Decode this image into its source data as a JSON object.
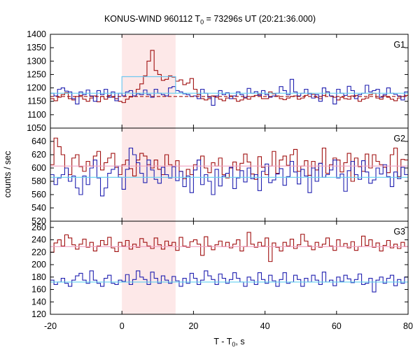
{
  "title": {
    "prefix": "KONUS-WIND 960112 T",
    "sub": "0",
    "suffix": " = 73296s UT (20:21:36.000)"
  },
  "chart_data": {
    "type": "line",
    "shading": {
      "x_range": [
        0,
        15
      ],
      "color": "#fde8e8"
    },
    "x_axis": {
      "label_main": "T - T",
      "label_sub": "0",
      "label_tail": ", s",
      "range": [
        -20,
        80
      ],
      "ticks": [
        -20,
        0,
        20,
        40,
        60,
        80
      ]
    },
    "ylabel": "counts / sec",
    "colors": {
      "red": "#a01010",
      "blue": "#2020b0",
      "pink": "#f0a0c0",
      "cyan": "#60d0f0"
    },
    "panels": [
      {
        "label": "G1",
        "ylim": [
          1050,
          1400
        ],
        "yticks": [
          1050,
          1100,
          1150,
          1200,
          1250,
          1300,
          1350,
          1400
        ],
        "fit_lines": [
          {
            "color": "red",
            "dashed": true,
            "value": 1168
          },
          {
            "color": "cyan",
            "dashed": false,
            "value": 1180
          }
        ],
        "background_blue": {
          "x_from": 0,
          "x_to": 15,
          "value": 1242
        },
        "series": [
          {
            "name": "red",
            "color": "red",
            "values": [
              1160,
              1152,
              1165,
              1175,
              1182,
              1160,
              1155,
              1168,
              1172,
              1158,
              1150,
              1162,
              1170,
              1148,
              1168,
              1158,
              1172,
              1165,
              1160,
              1150,
              1145,
              1158,
              1166,
              1170,
              1195,
              1215,
              1245,
              1300,
              1340,
              1265,
              1250,
              1228,
              1232,
              1245,
              1240,
              1225,
              1230,
              1212,
              1218,
              1235,
              1195,
              1175,
              1160,
              1155,
              1160,
              1170,
              1165,
              1158,
              1152,
              1162,
              1170,
              1160,
              1150,
              1155,
              1162,
              1158,
              1168,
              1172,
              1176,
              1160,
              1160,
              1185,
              1178,
              1170,
              1160,
              1156,
              1162,
              1168,
              1170,
              1158,
              1162,
              1172,
              1180,
              1176,
              1165,
              1160,
              1172,
              1185,
              1170,
              1165,
              1155,
              1165,
              1160,
              1158,
              1170,
              1172,
              1150,
              1158,
              1162,
              1175,
              1180,
              1162,
              1158,
              1170,
              1165,
              1158,
              1152,
              1162,
              1168,
              1172
            ]
          },
          {
            "name": "blue",
            "color": "blue",
            "values": [
              1180,
              1170,
              1195,
              1200,
              1188,
              1185,
              1160,
              1140,
              1185,
              1175,
              1192,
              1170,
              1150,
              1190,
              1175,
              1195,
              1165,
              1185,
              1152,
              1180,
              1170,
              1185,
              1190,
              1170,
              1178,
              1175,
              1192,
              1175,
              1165,
              1195,
              1180,
              1175,
              1170,
              1200,
              1205,
              1190,
              1185,
              1178,
              1175,
              1168,
              1170,
              1160,
              1195,
              1180,
              1165,
              1135,
              1170,
              1190,
              1175,
              1182,
              1160,
              1170,
              1185,
              1175,
              1165,
              1198,
              1180,
              1186,
              1172,
              1190,
              1175,
              1165,
              1170,
              1180,
              1205,
              1190,
              1175,
              1232,
              1185,
              1170,
              1180,
              1195,
              1178,
              1162,
              1175,
              1150,
              1200,
              1185,
              1170,
              1140,
              1195,
              1180,
              1172,
              1206,
              1190,
              1160,
              1175,
              1180,
              1210,
              1185,
              1190,
              1195,
              1165,
              1175,
              1200,
              1180,
              1176,
              1170,
              1155,
              1185
            ]
          }
        ]
      },
      {
        "label": "G2",
        "ylim": [
          520,
          660
        ],
        "yticks": [
          520,
          540,
          560,
          580,
          600,
          620,
          640
        ],
        "fit_lines": [
          {
            "color": "pink",
            "dashed": false,
            "value": 603
          },
          {
            "color": "cyan",
            "dashed": false,
            "value": 586
          }
        ],
        "series": [
          {
            "name": "red",
            "color": "red",
            "values": [
              605,
              645,
              632,
              620,
              600,
              590,
              615,
              620,
              602,
              595,
              610,
              603,
              618,
              625,
              597,
              608,
              615,
              622,
              601,
              590,
              605,
              612,
              599,
              588,
              612,
              622,
              618,
              605,
              600,
              612,
              598,
              590,
              620,
              605,
              602,
              611,
              595,
              584,
              598,
              590,
              605,
              612,
              618,
              600,
              593,
              608,
              603,
              615,
              590,
              585,
              600,
              609,
              597,
              607,
              621,
              609,
              591,
              583,
              617,
              601,
              590,
              603,
              625,
              592,
              612,
              618,
              604,
              620,
              628,
              595,
              603,
              611,
              589,
              610,
              597,
              607,
              630,
              592,
              605,
              615,
              612,
              594,
              608,
              622,
              580,
              615,
              602,
              595,
              621,
              600,
              620,
              610,
              605,
              601,
              593,
              620,
              630,
              587,
              613,
              612
            ]
          },
          {
            "name": "blue",
            "color": "blue",
            "values": [
              590,
              575,
              585,
              590,
              600,
              580,
              588,
              570,
              560,
              588,
              575,
              600,
              612,
              585,
              558,
              570,
              592,
              598,
              603,
              586,
              568,
              598,
              630,
              620,
              608,
              592,
              578,
              612,
              597,
              583,
              577,
              601,
              590,
              585,
              602,
              581,
              595,
              572,
              588,
              563,
              597,
              612,
              575,
              590,
              580,
              560,
              598,
              573,
              588,
              592,
              601,
              569,
              585,
              596,
              579,
              600,
              584,
              590,
              566,
              595,
              606,
              578,
              582,
              591,
              599,
              574,
              587,
              610,
              594,
              576,
              598,
              588,
              563,
              600,
              580,
              607,
              586,
              590,
              597,
              612,
              585,
              591,
              565,
              596,
              610,
              590,
              583,
              611,
              594,
              577,
              582,
              600,
              591,
              605,
              587,
              572,
              594,
              584,
              601,
              590
            ]
          }
        ]
      },
      {
        "label": "G3",
        "ylim": [
          120,
          270
        ],
        "yticks": [
          120,
          140,
          160,
          180,
          200,
          220,
          240,
          260
        ],
        "fit_lines": [
          {
            "color": "pink",
            "dashed": false,
            "value": 229
          },
          {
            "color": "cyan",
            "dashed": false,
            "value": 172
          }
        ],
        "series": [
          {
            "name": "red",
            "color": "red",
            "values": [
              220,
              235,
              240,
              230,
              248,
              243,
              232,
              225,
              233,
              241,
              228,
              236,
              222,
              230,
              239,
              232,
              244,
              227,
              221,
              236,
              230,
              239,
              225,
              233,
              228,
              242,
              236,
              230,
              226,
              243,
              232,
              225,
              238,
              231,
              236,
              223,
              244,
              230,
              228,
              237,
              240,
              233,
              215,
              245,
              230,
              224,
              232,
              238,
              229,
              236,
              227,
              233,
              240,
              222,
              229,
              252,
              233,
              228,
              236,
              230,
              243,
              205,
              235,
              228,
              222,
              236,
              230,
              241,
              226,
              232,
              249,
              238,
              230,
              224,
              236,
              228,
              233,
              243,
              230,
              223,
              240,
              229,
              234,
              227,
              237,
              223,
              229,
              246,
              231,
              240,
              228,
              235,
              222,
              231,
              239,
              227,
              233,
              226,
              236,
              229
            ]
          },
          {
            "name": "blue",
            "color": "blue",
            "values": [
              175,
              168,
              172,
              178,
              170,
              165,
              175,
              182,
              186,
              175,
              170,
              190,
              175,
              170,
              165,
              178,
              183,
              170,
              168,
              175,
              173,
              184,
              168,
              176,
              190,
              180,
              176,
              168,
              188,
              178,
              170,
              182,
              175,
              170,
              181,
              174,
              165,
              178,
              170,
              186,
              178,
              168,
              175,
              190,
              182,
              176,
              168,
              185,
              178,
              170,
              176,
              187,
              178,
              172,
              165,
              180,
              175,
              168,
              187,
              176,
              170,
              183,
              174,
              165,
              176,
              187,
              170,
              172,
              183,
              176,
              165,
              178,
              172,
              183,
              175,
              168,
              188,
              172,
              175,
              166,
              180,
              173,
              183,
              177,
              171,
              176,
              185,
              168,
              170,
              178,
              156,
              175,
              180,
              170,
              178,
              183,
              166,
              176,
              170,
              180
            ]
          }
        ]
      }
    ]
  }
}
